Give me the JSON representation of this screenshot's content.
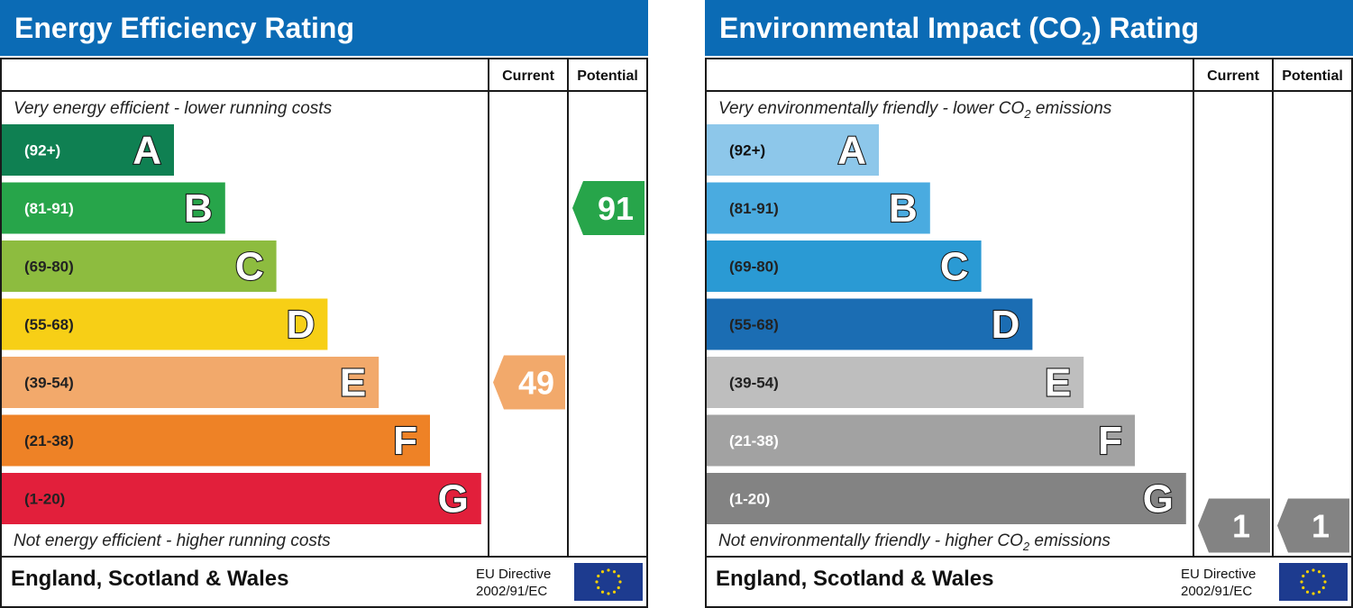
{
  "chart_data": [
    {
      "type": "bar",
      "title": "Energy Efficiency Rating",
      "columns": [
        "Current",
        "Potential"
      ],
      "top_note": "Very energy efficient - lower running costs",
      "bottom_note": "Not energy efficient - higher running costs",
      "footer": "England, Scotland & Wales",
      "directive": [
        "EU Directive",
        "2002/91/EC"
      ],
      "bands": [
        {
          "letter": "A",
          "range": "(92+)",
          "color": "#0f8052",
          "text_color": "#ffffff"
        },
        {
          "letter": "B",
          "range": "(81-91)",
          "color": "#27a54a",
          "text_color": "#ffffff"
        },
        {
          "letter": "C",
          "range": "(69-80)",
          "color": "#8dbc3f",
          "text_color": "#222222"
        },
        {
          "letter": "D",
          "range": "(55-68)",
          "color": "#f7cf16",
          "text_color": "#222222"
        },
        {
          "letter": "E",
          "range": "(39-54)",
          "color": "#f2a96b",
          "text_color": "#222222"
        },
        {
          "letter": "F",
          "range": "(21-38)",
          "color": "#ee8226",
          "text_color": "#222222"
        },
        {
          "letter": "G",
          "range": "(1-20)",
          "color": "#e21f3b",
          "text_color": "#222222"
        }
      ],
      "ratings": {
        "current": {
          "value": 49,
          "band": "E",
          "color": "#f2a96b"
        },
        "potential": {
          "value": 91,
          "band": "B",
          "color": "#27a54a"
        }
      }
    },
    {
      "type": "bar",
      "title": "Environmental Impact (CO₂) Rating",
      "columns": [
        "Current",
        "Potential"
      ],
      "top_note": "Very environmentally friendly - lower CO₂ emissions",
      "bottom_note": "Not environmentally friendly - higher CO₂ emissions",
      "footer": "England, Scotland & Wales",
      "directive": [
        "EU Directive",
        "2002/91/EC"
      ],
      "bands": [
        {
          "letter": "A",
          "range": "(92+)",
          "color": "#8dc7ea",
          "text_color": "#111111"
        },
        {
          "letter": "B",
          "range": "(81-91)",
          "color": "#4aabe0",
          "text_color": "#222222"
        },
        {
          "letter": "C",
          "range": "(69-80)",
          "color": "#2a9ad4",
          "text_color": "#222222"
        },
        {
          "letter": "D",
          "range": "(55-68)",
          "color": "#1b6db3",
          "text_color": "#222222"
        },
        {
          "letter": "E",
          "range": "(39-54)",
          "color": "#bebebe",
          "text_color": "#222222"
        },
        {
          "letter": "F",
          "range": "(21-38)",
          "color": "#a2a2a2",
          "text_color": "#ffffff"
        },
        {
          "letter": "G",
          "range": "(1-20)",
          "color": "#838383",
          "text_color": "#ffffff"
        }
      ],
      "ratings": {
        "current": {
          "value": 1,
          "band": "G",
          "color": "#838383"
        },
        "potential": {
          "value": 1,
          "band": "G",
          "color": "#838383"
        }
      }
    }
  ]
}
